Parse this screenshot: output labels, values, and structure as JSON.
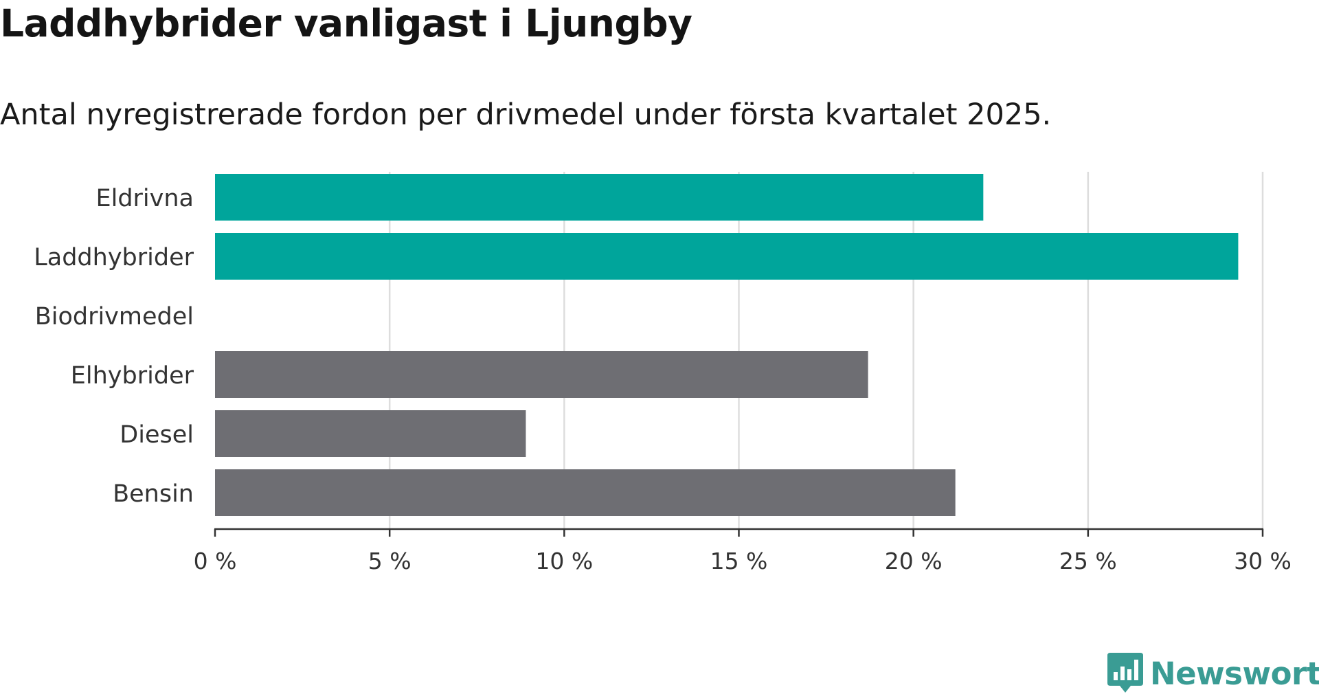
{
  "header": {
    "title": "Laddhybrider vanligast i Ljungby",
    "subtitle": "Antal nyregistrerade fordon per drivmedel under första kvartalet 2025."
  },
  "brand": {
    "name": "Newsworthy",
    "color": "#3a9c94",
    "icon": "newsworthy-logo-icon"
  },
  "chart_data": {
    "type": "bar",
    "orientation": "horizontal",
    "categories": [
      "Eldrivna",
      "Laddhybrider",
      "Biodrivmedel",
      "Elhybrider",
      "Diesel",
      "Bensin"
    ],
    "values": [
      22.0,
      29.3,
      0,
      18.7,
      8.9,
      21.2
    ],
    "colors": [
      "#00a59b",
      "#00a59b",
      "#00a59b",
      "#6e6e73",
      "#6e6e73",
      "#6e6e73"
    ],
    "xlim": [
      0,
      30
    ],
    "x_ticks": [
      0,
      5,
      10,
      15,
      20,
      25,
      30
    ],
    "x_tick_labels": [
      "0 %",
      "5 %",
      "10 %",
      "15 %",
      "20 %",
      "25 %",
      "30 %"
    ],
    "grid": true,
    "xlabel": "",
    "ylabel": ""
  }
}
